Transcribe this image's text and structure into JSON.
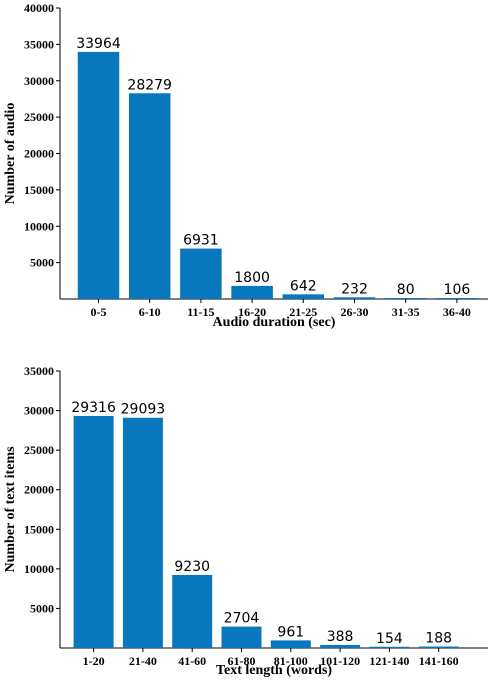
{
  "chart_data": [
    {
      "type": "bar",
      "categories": [
        "0-5",
        "6-10",
        "11-15",
        "16-20",
        "21-25",
        "26-30",
        "31-35",
        "36-40"
      ],
      "values": [
        33964,
        28279,
        6931,
        1800,
        642,
        232,
        80,
        106
      ],
      "data_labels": [
        "33964",
        "28279",
        "6931",
        "1800",
        "642",
        "232",
        "80",
        "106"
      ],
      "xlabel": "Audio duration (sec)",
      "ylabel": "Number of audio",
      "ylim": [
        0,
        40000
      ],
      "yticks": [
        5000,
        10000,
        15000,
        20000,
        25000,
        30000,
        35000,
        40000
      ],
      "ytick_labels": [
        "5000",
        "10000",
        "15000",
        "20000",
        "25000",
        "30000",
        "35000",
        "40000"
      ],
      "bar_color": "#0877BD",
      "grid": false
    },
    {
      "type": "bar",
      "categories": [
        "1-20",
        "21-40",
        "41-60",
        "61-80",
        "81-100",
        "101-120",
        "121-140",
        "141-160"
      ],
      "values": [
        29316,
        29093,
        9230,
        2704,
        961,
        388,
        154,
        188
      ],
      "data_labels": [
        "29316",
        "29093",
        "9230",
        "2704",
        "961",
        "388",
        "154",
        "188"
      ],
      "xlabel": "Text length (words)",
      "ylabel": "Number of text items",
      "ylim": [
        0,
        35000
      ],
      "yticks": [
        5000,
        10000,
        15000,
        20000,
        25000,
        30000,
        35000
      ],
      "ytick_labels": [
        "5000",
        "10000",
        "15000",
        "20000",
        "25000",
        "30000",
        "35000"
      ],
      "bar_color": "#0877BD",
      "grid": false
    }
  ]
}
